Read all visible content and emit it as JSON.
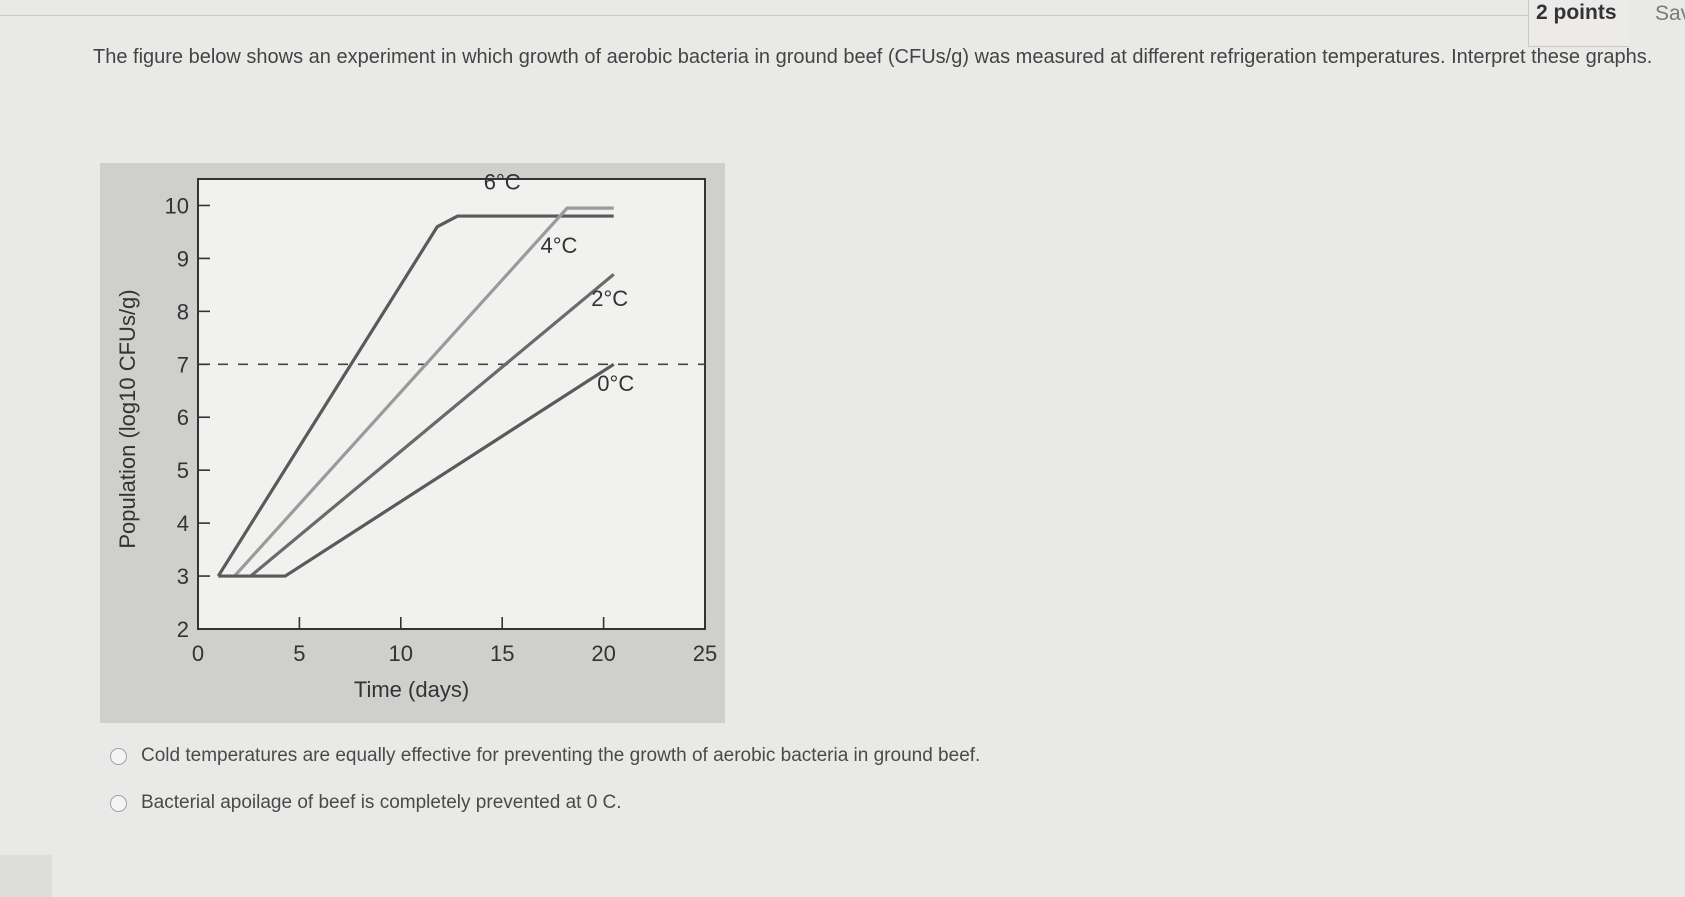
{
  "header": {
    "points_label": "2 points",
    "save_label": "Sav"
  },
  "question": {
    "text": "The figure below shows an experiment in which growth of aerobic bacteria in ground beef (CFUs/g) was measured at different refrigeration temperatures. Interpret these graphs."
  },
  "chart_data": {
    "type": "line",
    "xlabel": "Time (days)",
    "ylabel": "Population (log10 CFUs/g)",
    "xlim": [
      0,
      25
    ],
    "ylim": [
      2,
      10.5
    ],
    "xticks": [
      0,
      5,
      10,
      15,
      20,
      25
    ],
    "yticks": [
      2,
      3,
      4,
      5,
      6,
      7,
      8,
      9,
      10
    ],
    "threshold": 7,
    "series": [
      {
        "name": "6°C",
        "color": "#5a5a5a",
        "x": [
          1,
          11.8,
          12.8,
          20.5
        ],
        "y": [
          3,
          9.6,
          9.8,
          9.8
        ]
      },
      {
        "name": "4°C",
        "color": "#9a9a9a",
        "x": [
          1.8,
          18.2,
          20.5
        ],
        "y": [
          3,
          9.95,
          9.95
        ]
      },
      {
        "name": "2°C",
        "color": "#6a6a6a",
        "x": [
          2.6,
          20.5
        ],
        "y": [
          3,
          8.7
        ]
      },
      {
        "name": "0°C",
        "color": "#5a5a5a",
        "x": [
          1,
          4.3,
          20.5
        ],
        "y": [
          3,
          3,
          7
        ]
      }
    ]
  },
  "options": [
    {
      "label": "Cold temperatures are equally effective for preventing the growth of aerobic bacteria in ground beef."
    },
    {
      "label": "Bacterial apoilage of beef is completely prevented at 0 C."
    }
  ]
}
